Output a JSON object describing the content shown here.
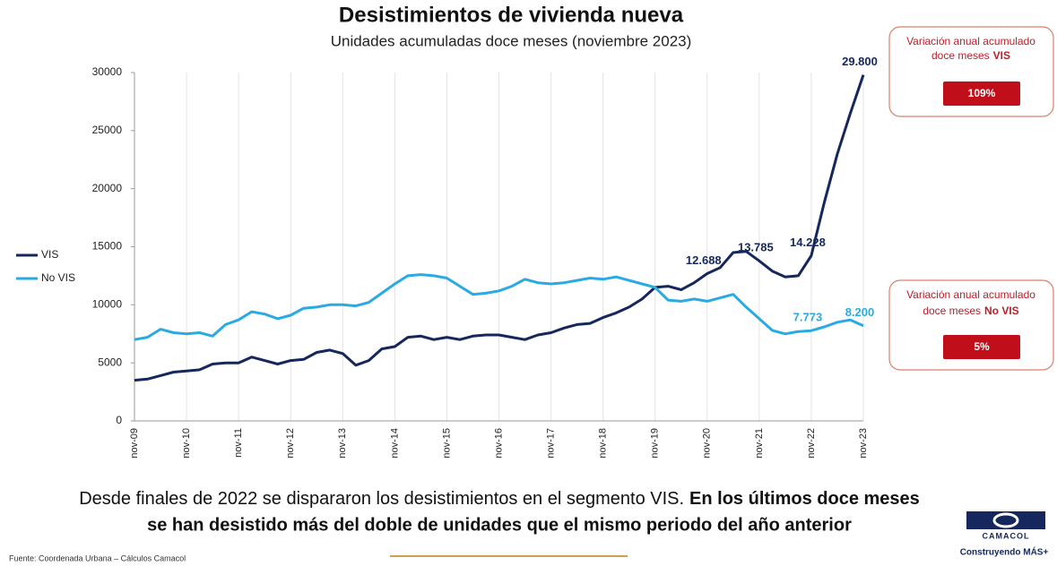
{
  "chart_data": {
    "type": "line",
    "title": "Desistimientos de vivienda nueva",
    "subtitle": "Unidades acumuladas doce meses (noviembre 2023)",
    "categories": [
      "nov-09",
      null,
      null,
      null,
      "nov-10",
      null,
      null,
      null,
      "nov-11",
      null,
      null,
      null,
      "nov-12",
      null,
      null,
      null,
      "nov-13",
      null,
      null,
      null,
      "nov-14",
      null,
      null,
      null,
      "nov-15",
      null,
      null,
      null,
      "nov-16",
      null,
      null,
      null,
      "nov-17",
      null,
      null,
      null,
      "nov-18",
      null,
      null,
      null,
      "nov-19",
      null,
      null,
      null,
      "nov-20",
      null,
      null,
      null,
      "nov-21",
      null,
      null,
      null,
      "nov-22",
      null,
      null,
      null,
      "nov-23"
    ],
    "series": [
      {
        "name": "VIS",
        "color": "#15275c",
        "values": [
          3500,
          3600,
          3900,
          4200,
          4300,
          4400,
          4900,
          5000,
          5000,
          5500,
          5200,
          4900,
          5200,
          5300,
          5900,
          6100,
          5800,
          4800,
          5200,
          6200,
          6400,
          7200,
          7300,
          7000,
          7200,
          7000,
          7300,
          7400,
          7400,
          7200,
          7000,
          7400,
          7600,
          8000,
          8300,
          8400,
          8900,
          9300,
          9800,
          10500,
          11500,
          11600,
          11300,
          11900,
          12688,
          13200,
          14500,
          14600,
          13785,
          12900,
          12400,
          12500,
          14228,
          18800,
          23000,
          26500,
          29800
        ],
        "value_labels": [
          null,
          null,
          null,
          null,
          null,
          null,
          null,
          null,
          null,
          null,
          null,
          null,
          null,
          null,
          null,
          null,
          null,
          null,
          null,
          null,
          null,
          null,
          null,
          null,
          null,
          null,
          null,
          null,
          null,
          null,
          null,
          null,
          null,
          null,
          null,
          null,
          null,
          null,
          null,
          null,
          null,
          null,
          null,
          null,
          "12.688",
          null,
          null,
          null,
          "13.785",
          null,
          null,
          null,
          "14.228",
          null,
          null,
          null,
          "29.800"
        ]
      },
      {
        "name": "No VIS",
        "color": "#2aaae2",
        "values": [
          7000,
          7200,
          7900,
          7600,
          7500,
          7600,
          7300,
          8300,
          8700,
          9400,
          9200,
          8800,
          9100,
          9700,
          9800,
          10000,
          10000,
          9900,
          10200,
          11000,
          11800,
          12500,
          12600,
          12500,
          12300,
          11600,
          10900,
          11000,
          11200,
          11600,
          12200,
          11900,
          11800,
          11900,
          12100,
          12300,
          12200,
          12400,
          12100,
          11800,
          11500,
          10400,
          10300,
          10500,
          10300,
          10600,
          10900,
          9800,
          8800,
          7800,
          7500,
          7700,
          7773,
          8100,
          8500,
          8700,
          8200
        ],
        "value_labels": [
          null,
          null,
          null,
          null,
          null,
          null,
          null,
          null,
          null,
          null,
          null,
          null,
          null,
          null,
          null,
          null,
          null,
          null,
          null,
          null,
          null,
          null,
          null,
          null,
          null,
          null,
          null,
          null,
          null,
          null,
          null,
          null,
          null,
          null,
          null,
          null,
          null,
          null,
          null,
          null,
          null,
          null,
          null,
          null,
          null,
          null,
          null,
          null,
          null,
          null,
          null,
          null,
          "7.773",
          null,
          null,
          null,
          "8.200"
        ]
      }
    ],
    "ylim": [
      0,
      30000
    ],
    "yticks": [
      0,
      5000,
      10000,
      15000,
      20000,
      25000,
      30000
    ],
    "grid": "x",
    "legend": "left"
  },
  "boxes": [
    {
      "text": "Variación anual acumulado",
      "text2": "doce meses",
      "segment": "VIS",
      "badge": "109%"
    },
    {
      "text": "Variación anual acumulado",
      "text2": "doce meses",
      "segment": "No VIS",
      "badge": "5%"
    }
  ],
  "message": {
    "normal": "Desde finales de 2022 se dispararon los desistimientos en el segmento VIS.",
    "bold_1": "En los últimos doce meses",
    "bold_2": "se han desistido más del doble de unidades que el mismo periodo del año anterior"
  },
  "source": "Fuente: Coordenada Urbana – Cálculos Camacol",
  "logo": {
    "name": "CAMACOL",
    "tagline": "Construyendo MÁS+"
  }
}
